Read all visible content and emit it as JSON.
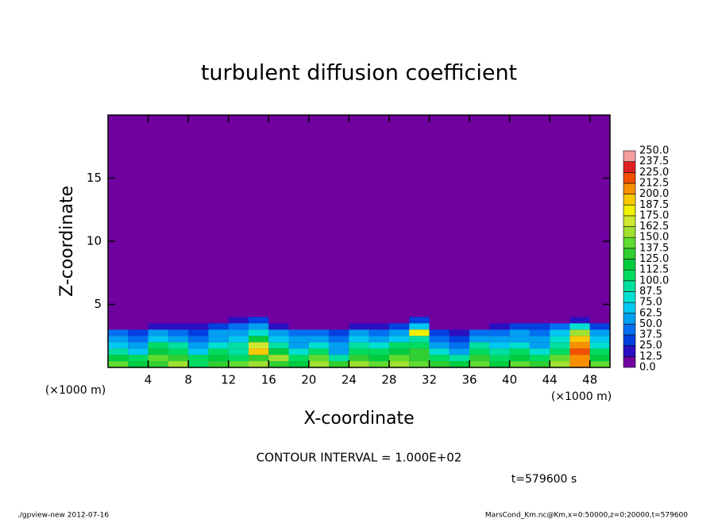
{
  "chart_data": {
    "type": "heatmap",
    "title": "turbulent diffusion coefficient",
    "x_label": "X-coordinate",
    "y_label": "Z-coordinate",
    "x_unit_label": "(×1000 m)",
    "y_unit_label": "(×1000 m)",
    "contour_note": "CONTOUR INTERVAL = 1.000E+02",
    "time_label": "t=579600 s",
    "footer_left": "./gpview-new  2012-07-16",
    "footer_right": "MarsCond_Km.nc@Km,x=0:50000,z=0:20000,t=579600",
    "xlim": [
      0,
      50
    ],
    "xticks": [
      4,
      8,
      12,
      16,
      20,
      24,
      28,
      32,
      36,
      40,
      44,
      48
    ],
    "ylim": [
      0,
      20
    ],
    "yticks": [
      5,
      10,
      15
    ],
    "x": [
      1,
      3,
      5,
      7,
      9,
      11,
      13,
      15,
      17,
      19,
      21,
      23,
      25,
      27,
      29,
      31,
      33,
      35,
      37,
      39,
      41,
      43,
      45,
      47,
      49
    ],
    "y": [
      0.25,
      0.75,
      1.25,
      1.75,
      2.25,
      2.75,
      3.25,
      3.75
    ],
    "values": [
      [
        140,
        120,
        130,
        150,
        110,
        130,
        140,
        150,
        130,
        120,
        150,
        130,
        160,
        140,
        150,
        140,
        130,
        120,
        140,
        120,
        140,
        130,
        150,
        200,
        140
      ],
      [
        120,
        100,
        140,
        130,
        100,
        120,
        110,
        130,
        150,
        110,
        140,
        90,
        130,
        120,
        140,
        130,
        100,
        90,
        130,
        110,
        120,
        100,
        140,
        210,
        120
      ],
      [
        90,
        70,
        120,
        110,
        70,
        100,
        90,
        190,
        120,
        80,
        100,
        60,
        110,
        100,
        120,
        130,
        80,
        60,
        110,
        90,
        100,
        80,
        110,
        220,
        100
      ],
      [
        70,
        60,
        100,
        90,
        50,
        80,
        90,
        170,
        90,
        60,
        80,
        50,
        90,
        80,
        100,
        110,
        60,
        40,
        90,
        70,
        80,
        60,
        90,
        200,
        80
      ],
      [
        60,
        40,
        70,
        60,
        40,
        60,
        70,
        120,
        70,
        50,
        60,
        40,
        70,
        60,
        70,
        90,
        40,
        30,
        60,
        60,
        60,
        50,
        80,
        190,
        70
      ],
      [
        40,
        30,
        50,
        40,
        30,
        50,
        60,
        80,
        50,
        40,
        40,
        30,
        50,
        40,
        60,
        180,
        30,
        20,
        40,
        40,
        50,
        40,
        70,
        150,
        50
      ],
      [
        10,
        10,
        20,
        20,
        20,
        30,
        40,
        60,
        20,
        10,
        10,
        10,
        20,
        20,
        30,
        70,
        10,
        10,
        10,
        20,
        30,
        30,
        40,
        80,
        30
      ],
      [
        0,
        0,
        0,
        0,
        0,
        10,
        20,
        30,
        10,
        0,
        0,
        0,
        0,
        0,
        10,
        30,
        0,
        0,
        0,
        0,
        0,
        10,
        10,
        20,
        10
      ]
    ],
    "levels": [
      {
        "value": 0,
        "label": "0.0"
      },
      12.5,
      {
        "value": 25,
        "label": "25.0"
      },
      37.5,
      {
        "value": 50,
        "label": "50.0"
      },
      62.5,
      {
        "value": 75,
        "label": "75.0"
      },
      87.5,
      {
        "value": 100,
        "label": "100.0"
      },
      112.5,
      {
        "value": 125,
        "label": "125.0"
      },
      137.5,
      {
        "value": 150,
        "label": "150.0"
      },
      162.5,
      {
        "value": 175,
        "label": "175.0"
      },
      187.5,
      {
        "value": 200,
        "label": "200.0"
      },
      212.5,
      {
        "value": 225,
        "label": "225.0"
      },
      237.5,
      {
        "value": 250,
        "label": "250.0"
      }
    ],
    "level_colors": [
      "#7000a0",
      "#2a10c0",
      "#0040e0",
      "#0070f0",
      "#00a0f0",
      "#00c8f0",
      "#00e0d0",
      "#00e0a0",
      "#00dc60",
      "#00cc40",
      "#30d030",
      "#60dc30",
      "#a0e030",
      "#d0e830",
      "#f0f000",
      "#f8c800",
      "#f89000",
      "#f05000",
      "#e02020",
      "#f4a0a0"
    ]
  }
}
